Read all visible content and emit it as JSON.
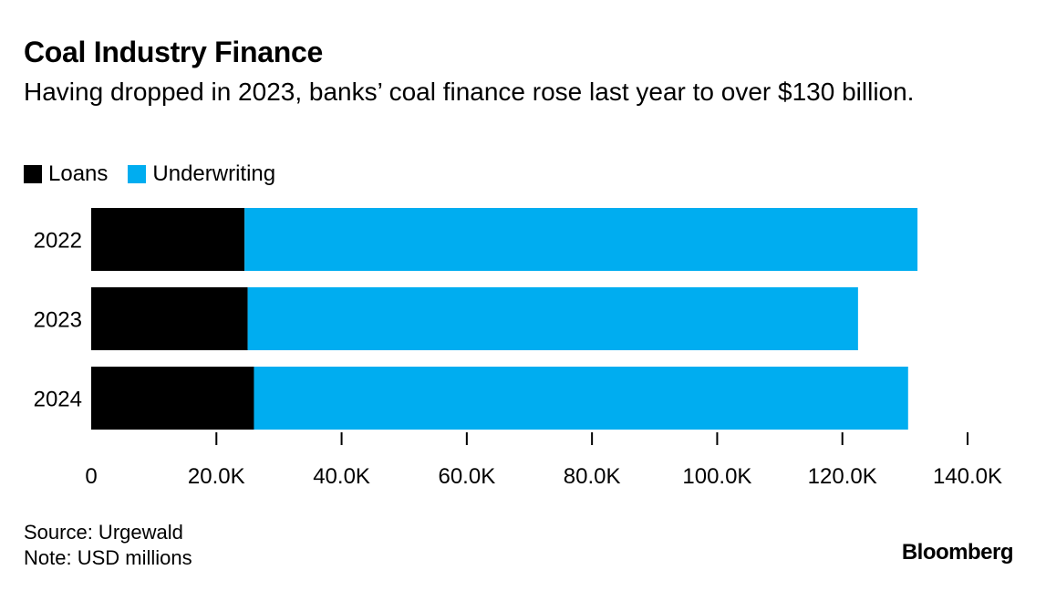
{
  "header": {
    "title": "Coal Industry Finance",
    "subtitle": "Having dropped in 2023, banks’ coal finance rose last year to over $130 billion."
  },
  "colors": {
    "loans": "#000000",
    "underwriting": "#00adf0",
    "axis": "#000000"
  },
  "chart_data": {
    "type": "bar",
    "orientation": "horizontal",
    "stacked": true,
    "categories": [
      "2022",
      "2023",
      "2024"
    ],
    "series": [
      {
        "name": "Loans",
        "values": [
          24500,
          25000,
          26000
        ]
      },
      {
        "name": "Underwriting",
        "values": [
          107500,
          97500,
          104500
        ]
      }
    ],
    "xlim": [
      0,
      140000
    ],
    "xticks": [
      0,
      20000,
      40000,
      60000,
      80000,
      100000,
      120000,
      140000
    ],
    "xtick_labels": [
      "0",
      "20.0K",
      "40.0K",
      "60.0K",
      "80.0K",
      "100.0K",
      "120.0K",
      "140.0K"
    ],
    "legend": "top-left",
    "grid": false
  },
  "footer": {
    "source": "Source: Urgewald",
    "note": "Note: USD millions",
    "brand": "Bloomberg"
  }
}
